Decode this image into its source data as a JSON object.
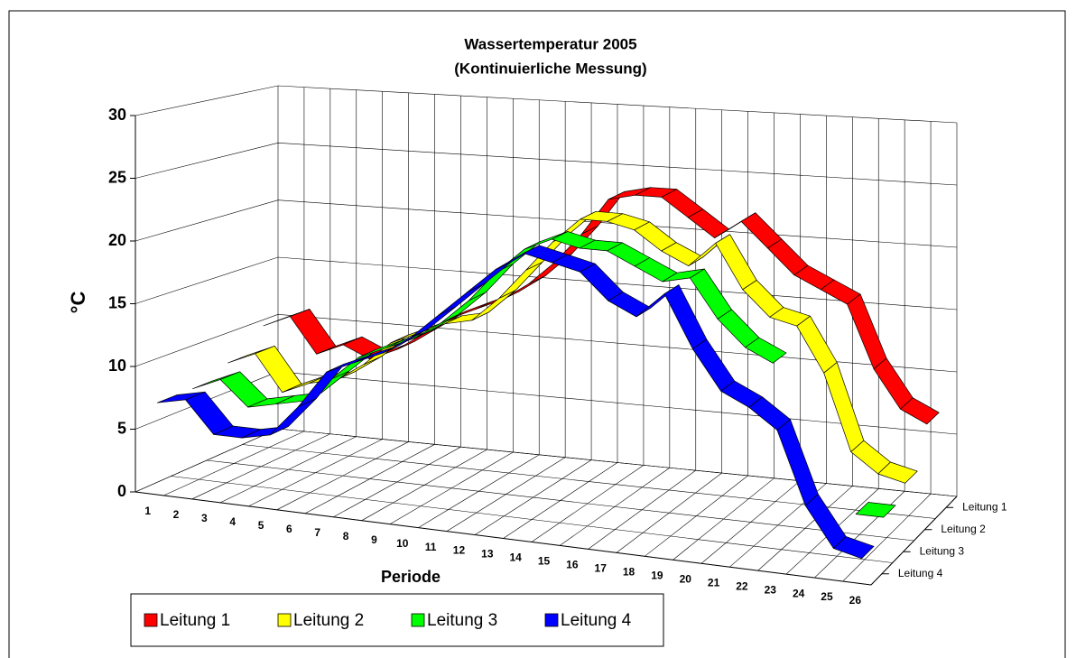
{
  "chart_data": {
    "type": "ribbon3d",
    "title": "Wassertemperatur 2005",
    "subtitle": "(Kontinuierliche Messung)",
    "y_label": "°C",
    "x_label": "Periode",
    "categories": [
      "1",
      "2",
      "3",
      "4",
      "5",
      "6",
      "7",
      "8",
      "9",
      "10",
      "11",
      "12",
      "13",
      "14",
      "15",
      "16",
      "17",
      "18",
      "19",
      "20",
      "21",
      "22",
      "23",
      "24",
      "25",
      "26"
    ],
    "series": [
      {
        "name": "Leitung 1",
        "color": "#ff0000",
        "values": [
          10,
          11,
          8,
          9,
          8,
          9,
          10.5,
          12,
          13,
          14,
          15.5,
          17.5,
          20,
          23,
          23.5,
          23.5,
          22,
          20.5,
          22,
          20,
          18,
          17,
          16,
          11,
          8,
          7
        ]
      },
      {
        "name": "Leitung 2",
        "color": "#ffff00",
        "values": [
          8,
          9,
          6,
          7,
          7.5,
          9,
          11,
          12,
          13,
          13.5,
          15.5,
          18,
          20.5,
          22.5,
          22.5,
          22,
          20.5,
          19.5,
          21.5,
          18,
          16,
          15.5,
          12,
          6,
          4.5,
          4
        ]
      },
      {
        "name": "Leitung 3",
        "color": "#00ff00",
        "values": [
          7,
          8,
          6,
          6.5,
          7,
          9,
          11,
          12,
          13,
          14.5,
          16.5,
          19,
          21,
          22,
          21.5,
          21.5,
          20.5,
          19.5,
          20,
          17,
          15,
          14,
          null,
          null,
          3,
          3
        ]
      },
      {
        "name": "Leitung 4",
        "color": "#0000ff",
        "values": [
          7,
          7.5,
          5,
          5,
          5.5,
          8,
          11,
          12,
          13,
          14.5,
          16.5,
          18.5,
          20.5,
          22,
          21.5,
          21,
          19,
          18,
          20,
          16,
          13,
          12,
          10.5,
          5,
          2,
          1.5
        ]
      }
    ],
    "ylim": [
      0,
      30
    ],
    "yticks": [
      0,
      5,
      10,
      15,
      20,
      25,
      30
    ],
    "grid": true
  }
}
